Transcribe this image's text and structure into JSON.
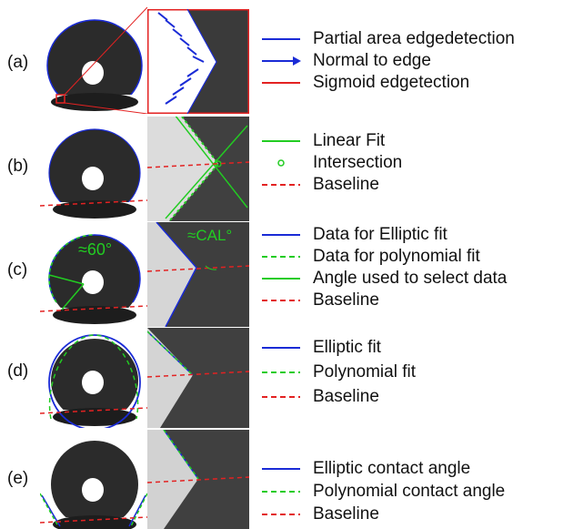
{
  "panels": [
    {
      "label": "(a)",
      "legend": [
        {
          "text": "Partial area edgedetection",
          "style": "solid",
          "color": "#1a2bd6"
        },
        {
          "text": "Normal to edge",
          "style": "arrow",
          "color": "#1a2bd6"
        },
        {
          "text": "Sigmoid edgetection",
          "style": "solid",
          "color": "#e32222"
        }
      ]
    },
    {
      "label": "(b)",
      "legend": [
        {
          "text": "Linear Fit",
          "style": "solid",
          "color": "#22cc22"
        },
        {
          "text": "Intersection",
          "style": "circle",
          "color": "#22cc22"
        },
        {
          "text": "Baseline",
          "style": "dashed",
          "color": "#e32222"
        }
      ]
    },
    {
      "label": "(c)",
      "angle_label": "≈60°",
      "zoom_label": "≈CAL°",
      "legend": [
        {
          "text": "Data for Elliptic fit",
          "style": "solid",
          "color": "#1a2bd6"
        },
        {
          "text": "Data for polynomial fit",
          "style": "dashed",
          "color": "#22cc22"
        },
        {
          "text": "Angle used to select data",
          "style": "solid",
          "color": "#22cc22"
        },
        {
          "text": "Baseline",
          "style": "dashed",
          "color": "#e32222"
        }
      ]
    },
    {
      "label": "(d)",
      "legend": [
        {
          "text": "Elliptic fit",
          "style": "solid",
          "color": "#1a2bd6"
        },
        {
          "text": "Polynomial fit",
          "style": "dashed",
          "color": "#22cc22"
        },
        {
          "text": "Baseline",
          "style": "dashed",
          "color": "#e32222"
        }
      ]
    },
    {
      "label": "(e)",
      "legend": [
        {
          "text": "Elliptic contact angle",
          "style": "solid",
          "color": "#1a2bd6"
        },
        {
          "text": "Polynomial contact angle",
          "style": "dashed",
          "color": "#22cc22"
        },
        {
          "text": "Baseline",
          "style": "dashed",
          "color": "#e32222"
        }
      ]
    }
  ],
  "colors": {
    "blue": "#1a2bd6",
    "green": "#22cc22",
    "red": "#e32222",
    "drop": "#2a2a2a",
    "background_gray": "#3c3c3c"
  }
}
